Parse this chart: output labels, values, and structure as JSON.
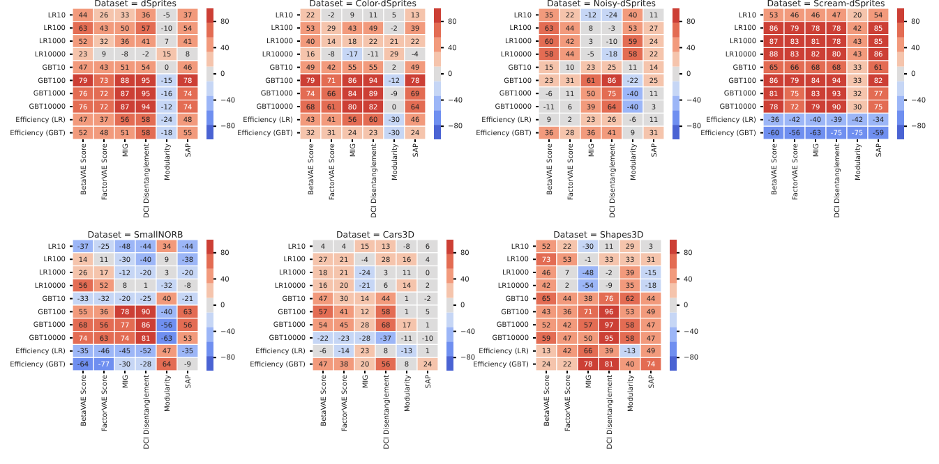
{
  "chart_data": [
    {
      "type": "heatmap",
      "title": "Dataset = dSprites",
      "categories": [
        "BetaVAE Score",
        "FactorVAE Score",
        "MIG",
        "DCI Disentanglement",
        "Modularity",
        "SAP"
      ],
      "y_categories": [
        "LR10",
        "LR100",
        "LR1000",
        "LR10000",
        "GBT10",
        "GBT100",
        "GBT1000",
        "GBT10000",
        "Efficiency (LR)",
        "Efficiency (GBT)"
      ],
      "data_labels": true,
      "clim": [
        -100,
        100
      ],
      "cticks": [
        80,
        40,
        0,
        -40,
        -80
      ],
      "cells": [
        [
          44,
          26,
          33,
          36,
          -5,
          37
        ],
        [
          63,
          43,
          50,
          57,
          -10,
          54
        ],
        [
          52,
          32,
          36,
          41,
          7,
          41
        ],
        [
          23,
          9,
          -8,
          -2,
          15,
          8
        ],
        [
          47,
          43,
          51,
          54,
          0,
          46
        ],
        [
          79,
          73,
          88,
          95,
          -15,
          78
        ],
        [
          76,
          72,
          87,
          95,
          -16,
          74
        ],
        [
          76,
          72,
          87,
          94,
          -12,
          74
        ],
        [
          47,
          37,
          56,
          58,
          -24,
          48
        ],
        [
          52,
          48,
          51,
          58,
          -18,
          55
        ]
      ]
    },
    {
      "type": "heatmap",
      "title": "Dataset = Color-dSprites",
      "categories": [
        "BetaVAE Score",
        "FactorVAE Score",
        "MIG",
        "DCI Disentanglement",
        "Modularity",
        "SAP"
      ],
      "y_categories": [
        "LR10",
        "LR100",
        "LR1000",
        "LR10000",
        "GBT10",
        "GBT100",
        "GBT1000",
        "GBT10000",
        "Efficiency (LR)",
        "Efficiency (GBT)"
      ],
      "data_labels": true,
      "clim": [
        -100,
        100
      ],
      "cticks": [
        80,
        40,
        0,
        -40,
        -80
      ],
      "cells": [
        [
          22,
          -2,
          9,
          11,
          5,
          13
        ],
        [
          53,
          29,
          43,
          49,
          -2,
          39
        ],
        [
          40,
          14,
          18,
          22,
          21,
          22
        ],
        [
          16,
          -8,
          -17,
          -11,
          29,
          -4
        ],
        [
          49,
          42,
          55,
          55,
          2,
          49
        ],
        [
          79,
          71,
          86,
          94,
          -12,
          78
        ],
        [
          74,
          66,
          84,
          89,
          -9,
          69
        ],
        [
          68,
          61,
          80,
          82,
          0,
          64
        ],
        [
          43,
          41,
          56,
          60,
          -30,
          46
        ],
        [
          32,
          31,
          24,
          23,
          -30,
          24
        ]
      ]
    },
    {
      "type": "heatmap",
      "title": "Dataset = Noisy-dSprites",
      "categories": [
        "BetaVAE Score",
        "FactorVAE Score",
        "MIG",
        "DCI Disentanglement",
        "Modularity",
        "SAP"
      ],
      "y_categories": [
        "LR10",
        "LR100",
        "LR1000",
        "LR10000",
        "GBT10",
        "GBT100",
        "GBT1000",
        "GBT10000",
        "Efficiency (LR)",
        "Efficiency (GBT)"
      ],
      "data_labels": true,
      "clim": [
        -100,
        100
      ],
      "cticks": [
        80,
        40,
        0,
        -40,
        -80
      ],
      "cells": [
        [
          35,
          22,
          -12,
          -24,
          40,
          11
        ],
        [
          63,
          44,
          8,
          -3,
          53,
          27
        ],
        [
          60,
          42,
          3,
          -10,
          59,
          24
        ],
        [
          58,
          44,
          -5,
          -18,
          58,
          22
        ],
        [
          15,
          10,
          23,
          25,
          11,
          14
        ],
        [
          23,
          31,
          61,
          86,
          -22,
          25
        ],
        [
          -6,
          11,
          50,
          75,
          -40,
          11
        ],
        [
          -11,
          6,
          39,
          64,
          -40,
          3
        ],
        [
          9,
          2,
          23,
          26,
          -6,
          11
        ],
        [
          36,
          28,
          36,
          41,
          9,
          31
        ]
      ]
    },
    {
      "type": "heatmap",
      "title": "Dataset = Scream-dSprites",
      "categories": [
        "BetaVAE Score",
        "FactorVAE Score",
        "MIG",
        "DCI Disentanglement",
        "Modularity",
        "SAP"
      ],
      "y_categories": [
        "LR10",
        "LR100",
        "LR1000",
        "LR10000",
        "GBT10",
        "GBT100",
        "GBT1000",
        "GBT10000",
        "Efficiency (LR)",
        "Efficiency (GBT)"
      ],
      "data_labels": true,
      "clim": [
        -100,
        100
      ],
      "cticks": [
        80,
        40,
        0,
        -40,
        -80
      ],
      "cells": [
        [
          53,
          46,
          46,
          47,
          20,
          54
        ],
        [
          86,
          79,
          78,
          78,
          42,
          85
        ],
        [
          87,
          83,
          81,
          78,
          43,
          85
        ],
        [
          88,
          83,
          82,
          80,
          43,
          86
        ],
        [
          65,
          66,
          68,
          68,
          33,
          61
        ],
        [
          86,
          79,
          84,
          94,
          33,
          82
        ],
        [
          81,
          75,
          83,
          93,
          32,
          77
        ],
        [
          78,
          72,
          79,
          90,
          30,
          75
        ],
        [
          -36,
          -42,
          -40,
          -39,
          -42,
          -34
        ],
        [
          -60,
          -56,
          -63,
          -75,
          -75,
          -59
        ]
      ]
    },
    {
      "type": "heatmap",
      "title": "Dataset = SmallNORB",
      "categories": [
        "BetaVAE Score",
        "FactorVAE Score",
        "MIG",
        "DCI Disentanglement",
        "Modularity",
        "SAP"
      ],
      "y_categories": [
        "LR10",
        "LR100",
        "LR1000",
        "LR10000",
        "GBT10",
        "GBT100",
        "GBT1000",
        "GBT10000",
        "Efficiency (LR)",
        "Efficiency (GBT)"
      ],
      "data_labels": true,
      "clim": [
        -100,
        100
      ],
      "cticks": [
        80,
        40,
        0,
        -40,
        -80
      ],
      "cells": [
        [
          -37,
          -25,
          -48,
          -44,
          34,
          -44
        ],
        [
          14,
          11,
          -30,
          -40,
          9,
          -38
        ],
        [
          26,
          17,
          -12,
          -20,
          3,
          -20
        ],
        [
          56,
          52,
          8,
          1,
          -32,
          -8
        ],
        [
          -33,
          -32,
          -20,
          -25,
          40,
          -21
        ],
        [
          55,
          36,
          78,
          90,
          -40,
          63
        ],
        [
          68,
          56,
          77,
          86,
          -56,
          56
        ],
        [
          74,
          63,
          74,
          81,
          -63,
          53
        ],
        [
          -35,
          -46,
          -45,
          -52,
          47,
          -35
        ],
        [
          -64,
          -77,
          -30,
          -28,
          64,
          -9
        ]
      ]
    },
    {
      "type": "heatmap",
      "title": "Dataset = Cars3D",
      "categories": [
        "BetaVAE Score",
        "FactorVAE Score",
        "MIG",
        "DCI Disentanglement",
        "Modularity",
        "SAP"
      ],
      "y_categories": [
        "LR10",
        "LR100",
        "LR1000",
        "LR10000",
        "GBT10",
        "GBT100",
        "GBT1000",
        "GBT10000",
        "Efficiency (LR)",
        "Efficiency (GBT)"
      ],
      "data_labels": true,
      "clim": [
        -100,
        100
      ],
      "cticks": [
        80,
        40,
        0,
        -40,
        -80
      ],
      "cells": [
        [
          4,
          4,
          15,
          13,
          -8,
          6
        ],
        [
          27,
          21,
          -4,
          28,
          16,
          4
        ],
        [
          18,
          21,
          -24,
          3,
          11,
          0
        ],
        [
          16,
          20,
          -21,
          6,
          14,
          2
        ],
        [
          47,
          30,
          14,
          44,
          1,
          -2
        ],
        [
          57,
          41,
          12,
          58,
          1,
          5
        ],
        [
          54,
          45,
          28,
          68,
          17,
          1
        ],
        [
          -22,
          -23,
          -28,
          -37,
          -11,
          -10
        ],
        [
          -6,
          -14,
          23,
          8,
          -13,
          1
        ],
        [
          47,
          38,
          20,
          56,
          8,
          24
        ]
      ]
    },
    {
      "type": "heatmap",
      "title": "Dataset = Shapes3D",
      "categories": [
        "BetaVAE Score",
        "FactorVAE Score",
        "MIG",
        "DCI Disentanglement",
        "Modularity",
        "SAP"
      ],
      "y_categories": [
        "LR10",
        "LR100",
        "LR1000",
        "LR10000",
        "GBT10",
        "GBT100",
        "GBT1000",
        "GBT10000",
        "Efficiency (LR)",
        "Efficiency (GBT)"
      ],
      "data_labels": true,
      "clim": [
        -100,
        100
      ],
      "cticks": [
        80,
        40,
        0,
        -40,
        -80
      ],
      "cells": [
        [
          52,
          22,
          -30,
          11,
          29,
          3
        ],
        [
          73,
          53,
          -1,
          33,
          33,
          31
        ],
        [
          46,
          7,
          -48,
          -2,
          39,
          -15
        ],
        [
          42,
          2,
          -54,
          -9,
          35,
          -18
        ],
        [
          65,
          44,
          38,
          76,
          62,
          44
        ],
        [
          43,
          36,
          71,
          96,
          53,
          49
        ],
        [
          52,
          42,
          57,
          97,
          58,
          47
        ],
        [
          59,
          47,
          50,
          95,
          58,
          47
        ],
        [
          13,
          42,
          66,
          39,
          -13,
          49
        ],
        [
          24,
          22,
          78,
          81,
          40,
          74
        ]
      ]
    }
  ]
}
